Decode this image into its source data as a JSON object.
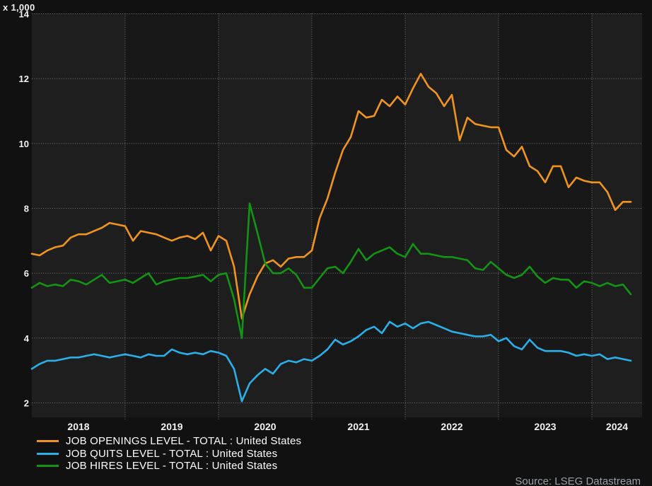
{
  "chart_data": {
    "type": "line",
    "title": "",
    "unit_label": "x 1,000",
    "frequency": "monthly",
    "x_start_label": "2018",
    "x_tick_labels": [
      "2018",
      "2019",
      "2020",
      "2021",
      "2022",
      "2023",
      "2024"
    ],
    "y_ticks": [
      "14",
      "12",
      "10",
      "8",
      "6",
      "4",
      "2"
    ],
    "y_tick_values": [
      14,
      12,
      10,
      8,
      6,
      4,
      2
    ],
    "ylim": [
      1.55,
      14
    ],
    "grid": "dotted",
    "legend_position": "bottom-left",
    "source": "Source: LSEG Datastream",
    "series": [
      {
        "name": "JOB OPENINGS LEVEL - TOTAL : United States",
        "color": "#F0941E",
        "values": [
          6.6,
          6.55,
          6.7,
          6.8,
          6.85,
          7.1,
          7.2,
          7.2,
          7.3,
          7.4,
          7.55,
          7.5,
          7.45,
          7.0,
          7.3,
          7.25,
          7.2,
          7.1,
          7.0,
          7.1,
          7.15,
          7.05,
          7.25,
          6.7,
          7.15,
          7.0,
          6.2,
          4.6,
          5.35,
          5.9,
          6.3,
          6.4,
          6.2,
          6.45,
          6.5,
          6.5,
          6.7,
          7.7,
          8.3,
          9.1,
          9.8,
          10.2,
          11.0,
          10.8,
          10.85,
          11.35,
          11.15,
          11.45,
          11.2,
          11.7,
          12.15,
          11.75,
          11.55,
          11.15,
          11.5,
          10.1,
          10.8,
          10.6,
          10.55,
          10.5,
          10.5,
          9.8,
          9.6,
          9.9,
          9.3,
          9.15,
          8.8,
          9.3,
          9.3,
          8.65,
          8.95,
          8.85,
          8.8,
          8.8,
          8.5,
          7.95,
          8.2,
          8.2
        ]
      },
      {
        "name": "JOB QUITS LEVEL - TOTAL : United States",
        "color": "#2BAFE8",
        "values": [
          3.05,
          3.2,
          3.3,
          3.3,
          3.35,
          3.4,
          3.4,
          3.45,
          3.5,
          3.45,
          3.4,
          3.45,
          3.5,
          3.45,
          3.4,
          3.5,
          3.45,
          3.45,
          3.65,
          3.55,
          3.5,
          3.55,
          3.5,
          3.6,
          3.55,
          3.45,
          3.05,
          2.05,
          2.6,
          2.85,
          3.05,
          2.9,
          3.2,
          3.3,
          3.25,
          3.35,
          3.3,
          3.45,
          3.65,
          3.95,
          3.8,
          3.9,
          4.05,
          4.25,
          4.35,
          4.15,
          4.5,
          4.35,
          4.45,
          4.3,
          4.45,
          4.5,
          4.4,
          4.3,
          4.2,
          4.15,
          4.1,
          4.05,
          4.05,
          4.1,
          3.9,
          4.0,
          3.75,
          3.65,
          3.95,
          3.7,
          3.6,
          3.6,
          3.6,
          3.55,
          3.45,
          3.5,
          3.45,
          3.5,
          3.35,
          3.4,
          3.35,
          3.3
        ]
      },
      {
        "name": "JOB HIRES LEVEL - TOTAL : United States",
        "color": "#149414",
        "values": [
          5.55,
          5.7,
          5.6,
          5.65,
          5.6,
          5.8,
          5.75,
          5.65,
          5.8,
          5.95,
          5.7,
          5.75,
          5.8,
          5.7,
          5.85,
          6.0,
          5.65,
          5.75,
          5.8,
          5.85,
          5.85,
          5.9,
          5.95,
          5.75,
          5.95,
          6.0,
          5.2,
          4.0,
          8.15,
          7.25,
          6.3,
          6.0,
          6.0,
          6.15,
          5.95,
          5.55,
          5.55,
          5.85,
          6.15,
          6.2,
          6.0,
          6.35,
          6.75,
          6.4,
          6.6,
          6.7,
          6.8,
          6.6,
          6.5,
          6.9,
          6.6,
          6.6,
          6.55,
          6.5,
          6.5,
          6.45,
          6.4,
          6.15,
          6.1,
          6.35,
          6.15,
          5.95,
          5.85,
          5.95,
          6.2,
          5.9,
          5.7,
          5.85,
          5.8,
          5.8,
          5.55,
          5.75,
          5.7,
          5.6,
          5.7,
          5.6,
          5.65,
          5.35
        ]
      }
    ]
  }
}
